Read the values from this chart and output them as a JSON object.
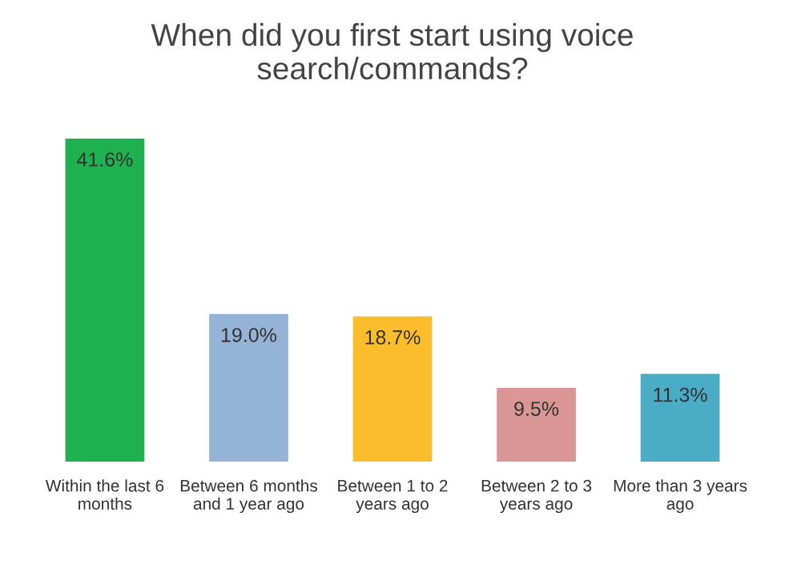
{
  "chart_data": {
    "type": "bar",
    "title": "When did you first start using voice\nsearch/commands?",
    "categories": [
      "Within the last 6\nmonths",
      "Between 6 months\nand 1 year ago",
      "Between 1 to 2\nyears ago",
      "Between 2 to 3\nyears ago",
      "More than 3 years\nago"
    ],
    "values": [
      41.6,
      19.0,
      18.7,
      9.5,
      11.3
    ],
    "value_labels": [
      "41.6%",
      "19.0%",
      "18.7%",
      "9.5%",
      "11.3%"
    ],
    "colors": [
      "#1fb14f",
      "#95b3d7",
      "#fbbd2c",
      "#d99694",
      "#4aacc5"
    ],
    "grid": false
  }
}
